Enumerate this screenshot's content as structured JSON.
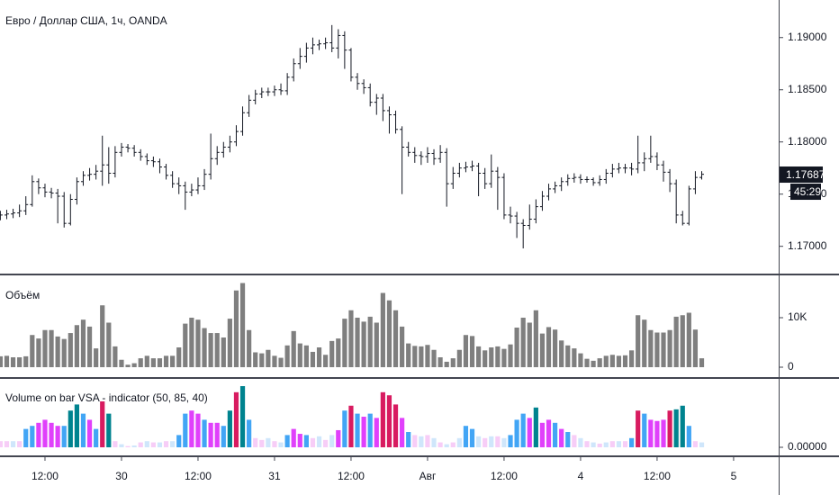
{
  "chart_data": [
    {
      "type": "ohlc",
      "title": "Евро / Доллар США, 1ч, OANDA",
      "color": "#131722",
      "open": [
        1.1729,
        1.173,
        1.1731,
        1.1732,
        1.1734,
        1.174,
        1.1762,
        1.1756,
        1.1752,
        1.1751,
        1.1748,
        1.1722,
        1.1745,
        1.1762,
        1.1768,
        1.1769,
        1.1772,
        1.1778,
        1.177,
        1.179,
        1.1795,
        1.1794,
        1.179,
        1.1786,
        1.1782,
        1.1781,
        1.1776,
        1.1768,
        1.176,
        1.1758,
        1.1752,
        1.1754,
        1.1758,
        1.1769,
        1.1784,
        1.179,
        1.1795,
        1.18,
        1.181,
        1.1828,
        1.184,
        1.1846,
        1.1848,
        1.1848,
        1.185,
        1.1849,
        1.1862,
        1.1875,
        1.1882,
        1.189,
        1.1893,
        1.1894,
        1.1895,
        1.189,
        1.1902,
        1.1888,
        1.1862,
        1.1856,
        1.1852,
        1.1838,
        1.1842,
        1.183,
        1.1826,
        1.1812,
        1.1795,
        1.179,
        1.1787,
        1.1786,
        1.1789,
        1.1784,
        1.179,
        1.176,
        1.177,
        1.1775,
        1.1776,
        1.1777,
        1.177,
        1.176,
        1.1772,
        1.1766,
        1.173,
        1.1729,
        1.1722,
        1.172,
        1.1726,
        1.1738,
        1.1748,
        1.1755,
        1.1758,
        1.1762,
        1.1765,
        1.1766,
        1.1764,
        1.1764,
        1.1761,
        1.1764,
        1.177,
        1.1774,
        1.1775,
        1.1775,
        1.1774,
        1.178,
        1.1784,
        1.1786,
        1.1778,
        1.1771,
        1.176,
        1.173,
        1.1722,
        1.1755,
        1.1766
      ],
      "high": [
        1.1734,
        1.1735,
        1.1736,
        1.174,
        1.1748,
        1.1768,
        1.1765,
        1.176,
        1.1756,
        1.1755,
        1.1752,
        1.175,
        1.1766,
        1.1772,
        1.1775,
        1.1778,
        1.1806,
        1.1795,
        1.1796,
        1.1799,
        1.1798,
        1.1797,
        1.1793,
        1.1789,
        1.1786,
        1.1784,
        1.1779,
        1.1772,
        1.1766,
        1.1762,
        1.176,
        1.1766,
        1.1774,
        1.1808,
        1.1796,
        1.18,
        1.1806,
        1.1816,
        1.1834,
        1.1845,
        1.185,
        1.1852,
        1.1852,
        1.1854,
        1.1856,
        1.1866,
        1.188,
        1.189,
        1.1895,
        1.19,
        1.1898,
        1.19,
        1.1912,
        1.1908,
        1.1906,
        1.189,
        1.1866,
        1.186,
        1.1856,
        1.1846,
        1.1846,
        1.1834,
        1.183,
        1.1815,
        1.18,
        1.1795,
        1.1791,
        1.1795,
        1.1793,
        1.1797,
        1.1794,
        1.1776,
        1.178,
        1.1781,
        1.1782,
        1.178,
        1.1775,
        1.1788,
        1.1776,
        1.177,
        1.1738,
        1.1733,
        1.1726,
        1.174,
        1.1745,
        1.1753,
        1.176,
        1.1762,
        1.1766,
        1.1769,
        1.177,
        1.1769,
        1.1767,
        1.1766,
        1.1768,
        1.1774,
        1.1779,
        1.178,
        1.1779,
        1.178,
        1.1806,
        1.179,
        1.1806,
        1.179,
        1.1782,
        1.1774,
        1.1764,
        1.1734,
        1.1758,
        1.1772,
        1.1772
      ],
      "low": [
        1.1725,
        1.1726,
        1.1727,
        1.1728,
        1.173,
        1.1738,
        1.175,
        1.1747,
        1.1746,
        1.1722,
        1.1718,
        1.172,
        1.174,
        1.1758,
        1.1763,
        1.1764,
        1.1758,
        1.176,
        1.1766,
        1.1786,
        1.179,
        1.1786,
        1.1782,
        1.1778,
        1.1776,
        1.177,
        1.1764,
        1.1756,
        1.175,
        1.1735,
        1.1748,
        1.175,
        1.1754,
        1.1764,
        1.1778,
        1.1785,
        1.179,
        1.1796,
        1.1806,
        1.1824,
        1.1836,
        1.1842,
        1.1844,
        1.1844,
        1.1845,
        1.1845,
        1.1858,
        1.187,
        1.1876,
        1.1884,
        1.1888,
        1.1889,
        1.1886,
        1.188,
        1.187,
        1.1858,
        1.185,
        1.1846,
        1.1834,
        1.1826,
        1.182,
        1.1808,
        1.1808,
        1.175,
        1.1786,
        1.178,
        1.1778,
        1.178,
        1.1778,
        1.178,
        1.1738,
        1.1755,
        1.1766,
        1.1771,
        1.1772,
        1.1748,
        1.1755,
        1.1756,
        1.1735,
        1.1726,
        1.1722,
        1.1708,
        1.1698,
        1.1716,
        1.1722,
        1.1734,
        1.1744,
        1.1751,
        1.1753,
        1.1758,
        1.1761,
        1.176,
        1.1761,
        1.1758,
        1.1758,
        1.176,
        1.1766,
        1.177,
        1.177,
        1.1768,
        1.177,
        1.1772,
        1.178,
        1.1773,
        1.1762,
        1.1752,
        1.1722,
        1.172,
        1.172,
        1.175,
        1.1764
      ],
      "close": [
        1.173,
        1.1731,
        1.1732,
        1.1734,
        1.174,
        1.1762,
        1.1756,
        1.1752,
        1.1751,
        1.1748,
        1.1722,
        1.1745,
        1.1762,
        1.1768,
        1.1769,
        1.1772,
        1.1778,
        1.177,
        1.179,
        1.1795,
        1.1794,
        1.179,
        1.1786,
        1.1782,
        1.1781,
        1.1776,
        1.1768,
        1.176,
        1.1758,
        1.1752,
        1.1754,
        1.1758,
        1.1769,
        1.1784,
        1.179,
        1.1795,
        1.18,
        1.181,
        1.1828,
        1.184,
        1.1846,
        1.1848,
        1.1848,
        1.185,
        1.1849,
        1.1862,
        1.1875,
        1.1882,
        1.189,
        1.1893,
        1.1894,
        1.1895,
        1.189,
        1.1902,
        1.1888,
        1.1862,
        1.1856,
        1.1852,
        1.1838,
        1.1842,
        1.183,
        1.1826,
        1.1812,
        1.1795,
        1.179,
        1.1787,
        1.1786,
        1.1789,
        1.1784,
        1.179,
        1.176,
        1.177,
        1.1775,
        1.1776,
        1.1777,
        1.177,
        1.176,
        1.1772,
        1.1766,
        1.173,
        1.1729,
        1.1722,
        1.172,
        1.1726,
        1.1738,
        1.1748,
        1.1755,
        1.1758,
        1.1762,
        1.1765,
        1.1766,
        1.1764,
        1.1764,
        1.1761,
        1.1764,
        1.177,
        1.1774,
        1.1775,
        1.1775,
        1.1774,
        1.178,
        1.1784,
        1.1786,
        1.1778,
        1.1771,
        1.176,
        1.173,
        1.1722,
        1.1755,
        1.1766,
        1.1769
      ],
      "ylim": [
        1.1673,
        1.1936
      ],
      "yticks": [
        {
          "value": 1.19,
          "label": "1.19000"
        },
        {
          "value": 1.185,
          "label": "1.18500"
        },
        {
          "value": 1.18,
          "label": "1.18000"
        },
        {
          "value": 1.175,
          "label": "1.17500"
        },
        {
          "value": 1.17,
          "label": "1.17000"
        }
      ],
      "last_price": 1.17687,
      "countdown": "45:29"
    },
    {
      "type": "bar",
      "title": "Объём",
      "color": "#7f7f7f",
      "values": [
        2200,
        2300,
        2000,
        2000,
        2200,
        6500,
        5800,
        7500,
        7500,
        6200,
        5700,
        6900,
        8500,
        9600,
        8200,
        3800,
        12500,
        9000,
        4200,
        1500,
        500,
        800,
        1800,
        2300,
        1800,
        1800,
        2300,
        2300,
        4000,
        8800,
        10000,
        9600,
        7900,
        6900,
        6900,
        6000,
        9800,
        15500,
        17000,
        7500,
        3000,
        2800,
        3500,
        2300,
        1900,
        4400,
        7300,
        4800,
        4400,
        3100,
        4000,
        2500,
        5300,
        5800,
        9800,
        11500,
        10000,
        9200,
        10200,
        9000,
        15000,
        13500,
        11500,
        8200,
        4800,
        4300,
        4200,
        4500,
        3500,
        2000,
        1100,
        1800,
        3500,
        6500,
        6300,
        4200,
        3400,
        4000,
        4200,
        3700,
        4600,
        8000,
        10000,
        9000,
        11500,
        6800,
        8100,
        7600,
        5400,
        4400,
        3800,
        2800,
        1700,
        1300,
        1800,
        2300,
        2500,
        2300,
        2400,
        3400,
        10500,
        9600,
        7500,
        7000,
        7000,
        7500,
        10200,
        10500,
        11000,
        7600,
        1800
      ],
      "ylim": [
        -2000,
        18364
      ],
      "yticks": [
        0,
        {
          "value": 10000,
          "label": "10K"
        }
      ]
    },
    {
      "type": "bar",
      "title": "Volume on bar VSA - indicator (50, 85, 40)",
      "values": [
        0.1,
        0.1,
        0.1,
        0.1,
        0.3,
        0.35,
        0.4,
        0.45,
        0.4,
        0.35,
        0.35,
        0.6,
        0.7,
        0.55,
        0.45,
        0.3,
        0.75,
        0.55,
        0.1,
        0.05,
        0.02,
        0.03,
        0.08,
        0.1,
        0.08,
        0.08,
        0.1,
        0.1,
        0.2,
        0.55,
        0.6,
        0.55,
        0.45,
        0.4,
        0.4,
        0.35,
        0.6,
        0.9,
        1,
        0.45,
        0.15,
        0.12,
        0.15,
        0.1,
        0.08,
        0.2,
        0.3,
        0.22,
        0.2,
        0.15,
        0.18,
        0.12,
        0.2,
        0.28,
        0.6,
        0.68,
        0.55,
        0.5,
        0.55,
        0.48,
        0.9,
        0.85,
        0.7,
        0.48,
        0.25,
        0.2,
        0.18,
        0.2,
        0.15,
        0.08,
        0.05,
        0.08,
        0.15,
        0.35,
        0.3,
        0.18,
        0.15,
        0.18,
        0.18,
        0.15,
        0.2,
        0.45,
        0.55,
        0.48,
        0.65,
        0.4,
        0.45,
        0.4,
        0.3,
        0.25,
        0.2,
        0.15,
        0.1,
        0.08,
        0.06,
        0.08,
        0.1,
        0.1,
        0.1,
        0.15,
        0.6,
        0.55,
        0.45,
        0.43,
        0.45,
        0.6,
        0.62,
        0.68,
        0.35,
        0.1,
        0.08
      ],
      "colors": [
        "#f7cdf7",
        "#f7cdf7",
        "#cfe6fb",
        "#f7cdf7",
        "#42a5f5",
        "#42a5f5",
        "#e040fb",
        "#e040fb",
        "#e040fb",
        "#e040fb",
        "#42a5f5",
        "#00838f",
        "#00838f",
        "#42a5f5",
        "#e040fb",
        "#42a5f5",
        "#d81b60",
        "#00838f",
        "#f7cdf7",
        "#cfe6fb",
        "#f7cdf7",
        "#cfe6fb",
        "#f7cdf7",
        "#cfe6fb",
        "#f7cdf7",
        "#cfe6fb",
        "#f7cdf7",
        "#cfe6fb",
        "#42a5f5",
        "#42a5f5",
        "#e040fb",
        "#e040fb",
        "#42a5f5",
        "#e040fb",
        "#e040fb",
        "#42a5f5",
        "#00838f",
        "#d81b60",
        "#00838f",
        "#42a5f5",
        "#f7cdf7",
        "#f7cdf7",
        "#cfe6fb",
        "#f7cdf7",
        "#cfe6fb",
        "#42a5f5",
        "#e040fb",
        "#e040fb",
        "#42a5f5",
        "#f7cdf7",
        "#cfe6fb",
        "#f7cdf7",
        "#cfe6fb",
        "#e040fb",
        "#42a5f5",
        "#d81b60",
        "#42a5f5",
        "#e040fb",
        "#42a5f5",
        "#e040fb",
        "#d81b60",
        "#d81b60",
        "#d81b60",
        "#e040fb",
        "#42a5f5",
        "#f7cdf7",
        "#cfe6fb",
        "#f7cdf7",
        "#cfe6fb",
        "#f7cdf7",
        "#cfe6fb",
        "#f7cdf7",
        "#cfe6fb",
        "#42a5f5",
        "#42a5f5",
        "#cfe6fb",
        "#f7cdf7",
        "#cfe6fb",
        "#f7cdf7",
        "#cfe6fb",
        "#42a5f5",
        "#42a5f5",
        "#42a5f5",
        "#e040fb",
        "#00838f",
        "#e040fb",
        "#e040fb",
        "#42a5f5",
        "#e040fb",
        "#42a5f5",
        "#f7cdf7",
        "#cfe6fb",
        "#f7cdf7",
        "#cfe6fb",
        "#f7cdf7",
        "#cfe6fb",
        "#f7cdf7",
        "#cfe6fb",
        "#f7cdf7",
        "#42a5f5",
        "#d81b60",
        "#42a5f5",
        "#e040fb",
        "#e040fb",
        "#e040fb",
        "#d81b60",
        "#00838f",
        "#00838f",
        "#42a5f5",
        "#f7cdf7",
        "#cfe6fb"
      ],
      "ylim": [
        -0.147,
        1.118
      ],
      "yticks": [
        {
          "value": 0,
          "label": "0.00000"
        }
      ],
      "xlim": [
        0,
        122
      ],
      "xticks": [
        {
          "value": 7,
          "label": "12:00"
        },
        {
          "value": 19,
          "label": "30"
        },
        {
          "value": 31,
          "label": "12:00"
        },
        {
          "value": 43,
          "label": "31"
        },
        {
          "value": 55,
          "label": "12:00"
        },
        {
          "value": 67,
          "label": "Авг"
        },
        {
          "value": 79,
          "label": "12:00"
        },
        {
          "value": 91,
          "label": "4"
        },
        {
          "value": 103,
          "label": "12:00"
        },
        {
          "value": 115,
          "label": "5"
        }
      ]
    }
  ]
}
